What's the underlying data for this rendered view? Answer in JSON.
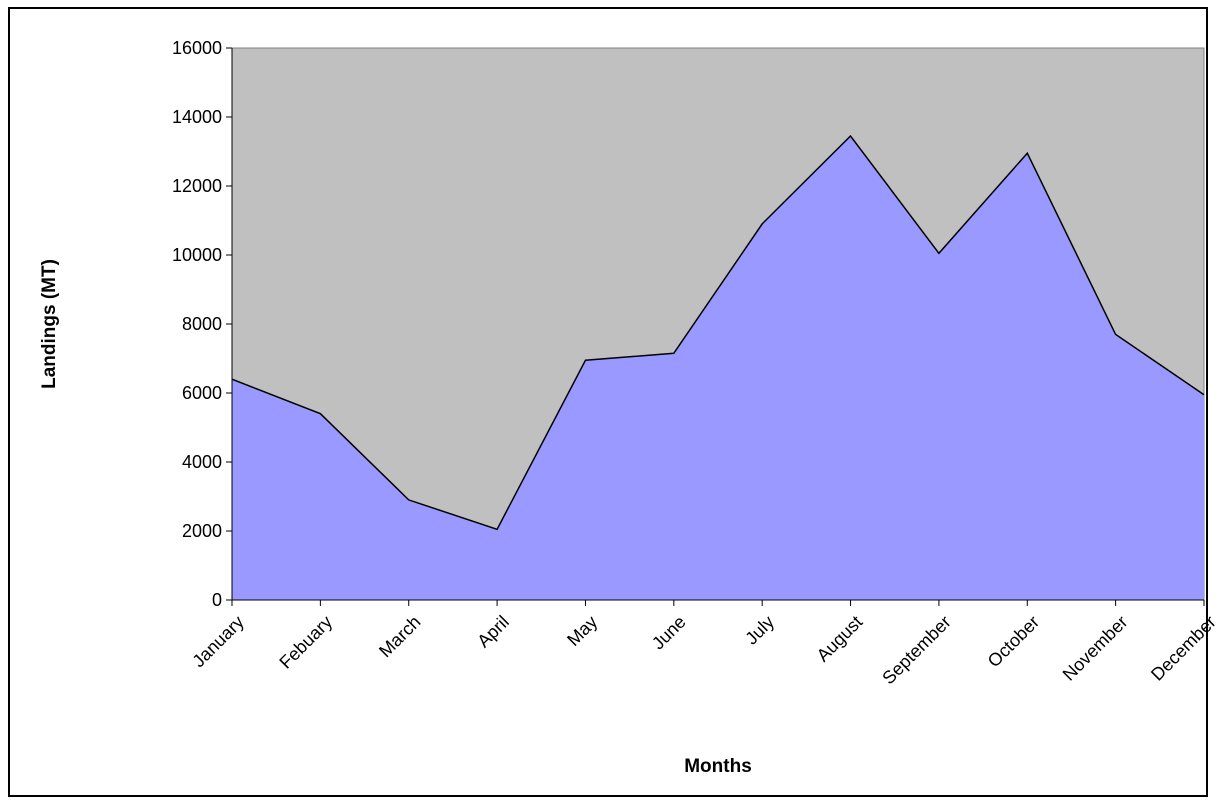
{
  "chart_data": {
    "type": "area",
    "categories": [
      "January",
      "Febuary",
      "March",
      "April",
      "May",
      "June",
      "July",
      "August",
      "September",
      "October",
      "November",
      "December"
    ],
    "series": [
      {
        "values": [
          6400,
          5400,
          2900,
          2050,
          6950,
          7150,
          10900,
          13450,
          10050,
          12950,
          7700,
          5950
        ]
      }
    ],
    "xlabel": "Months",
    "ylabel": "Landings (MT)",
    "ylim": [
      0,
      16000
    ],
    "yticks": [
      "0",
      "2000",
      "4000",
      "6000",
      "8000",
      "10000",
      "12000",
      "14000",
      "16000"
    ],
    "grid": false,
    "legend": "none",
    "colors": {
      "fill": "#9999ff",
      "plot_background": "#c0c0c0",
      "line": "#000000"
    }
  }
}
